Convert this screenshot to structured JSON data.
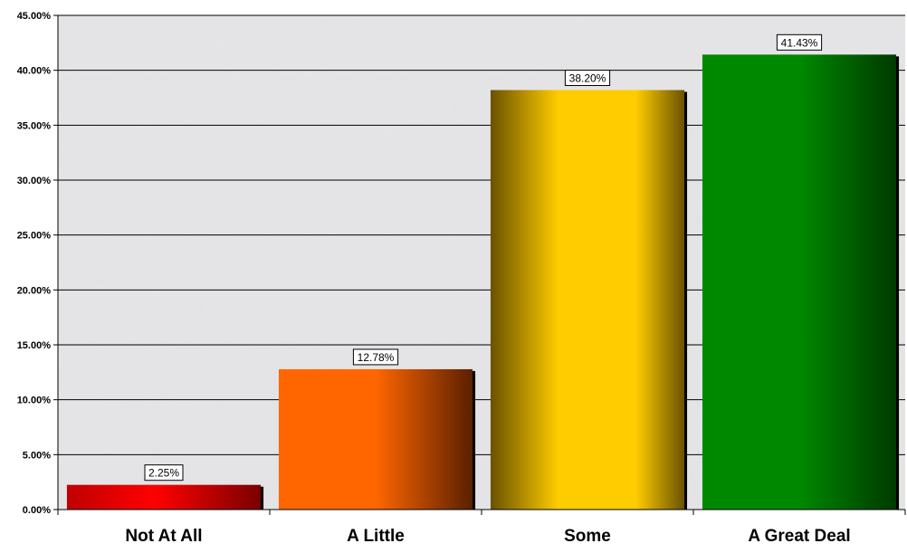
{
  "chart_data": {
    "type": "bar",
    "title": "",
    "xlabel": "",
    "ylabel": "",
    "categories": [
      "Not At All",
      "A Little",
      "Some",
      "A Great Deal"
    ],
    "values": [
      2.25,
      12.78,
      38.2,
      41.43
    ],
    "data_labels": [
      "2.25%",
      "12.78%",
      "38.20%",
      "41.43%"
    ],
    "ylim": [
      0,
      45
    ],
    "yticks": [
      0,
      5,
      10,
      15,
      20,
      25,
      30,
      35,
      40,
      45
    ],
    "ytick_labels": [
      "0.00%",
      "5.00%",
      "10.00%",
      "15.00%",
      "20.00%",
      "25.00%",
      "30.00%",
      "35.00%",
      "40.00%",
      "45.00%"
    ],
    "grid": true,
    "legend": "none",
    "bar_colors": [
      "#ff0000",
      "#ff6600",
      "#ffcc00",
      "#008800"
    ],
    "bar_dark_colors": [
      "#7a0000",
      "#5a2000",
      "#6a5200",
      "#003a00"
    ],
    "plot_background": "gray marble texture"
  }
}
